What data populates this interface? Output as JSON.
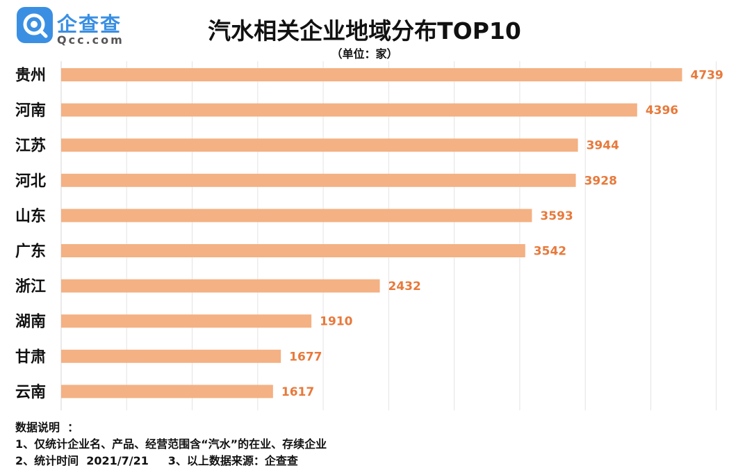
{
  "logo": {
    "name": "企查查",
    "domain": "Qcc.com",
    "icon": "qcc-magnifier-logo-icon"
  },
  "chart_data": {
    "type": "bar",
    "orientation": "horizontal",
    "title": "汽水相关企业地域分布TOP10",
    "subtitle": "（单位：家）",
    "categories": [
      "贵州",
      "河南",
      "江苏",
      "河北",
      "山东",
      "广东",
      "浙江",
      "湖南",
      "甘肃",
      "云南"
    ],
    "values": [
      4739,
      4396,
      3944,
      3928,
      3593,
      3542,
      2432,
      1910,
      1677,
      1617
    ],
    "xlim": [
      0,
      5000
    ],
    "grid": true,
    "bar_color": "#f4b183",
    "label_color": "#e8793b"
  },
  "notes": {
    "heading": "数据说明  ：",
    "line1": "1、仅统计企业名、产品、经营范围含“汽水”的在业、存续企业",
    "line2": "2、统计时间  2021/7/21     3、以上数据来源：企查查"
  }
}
